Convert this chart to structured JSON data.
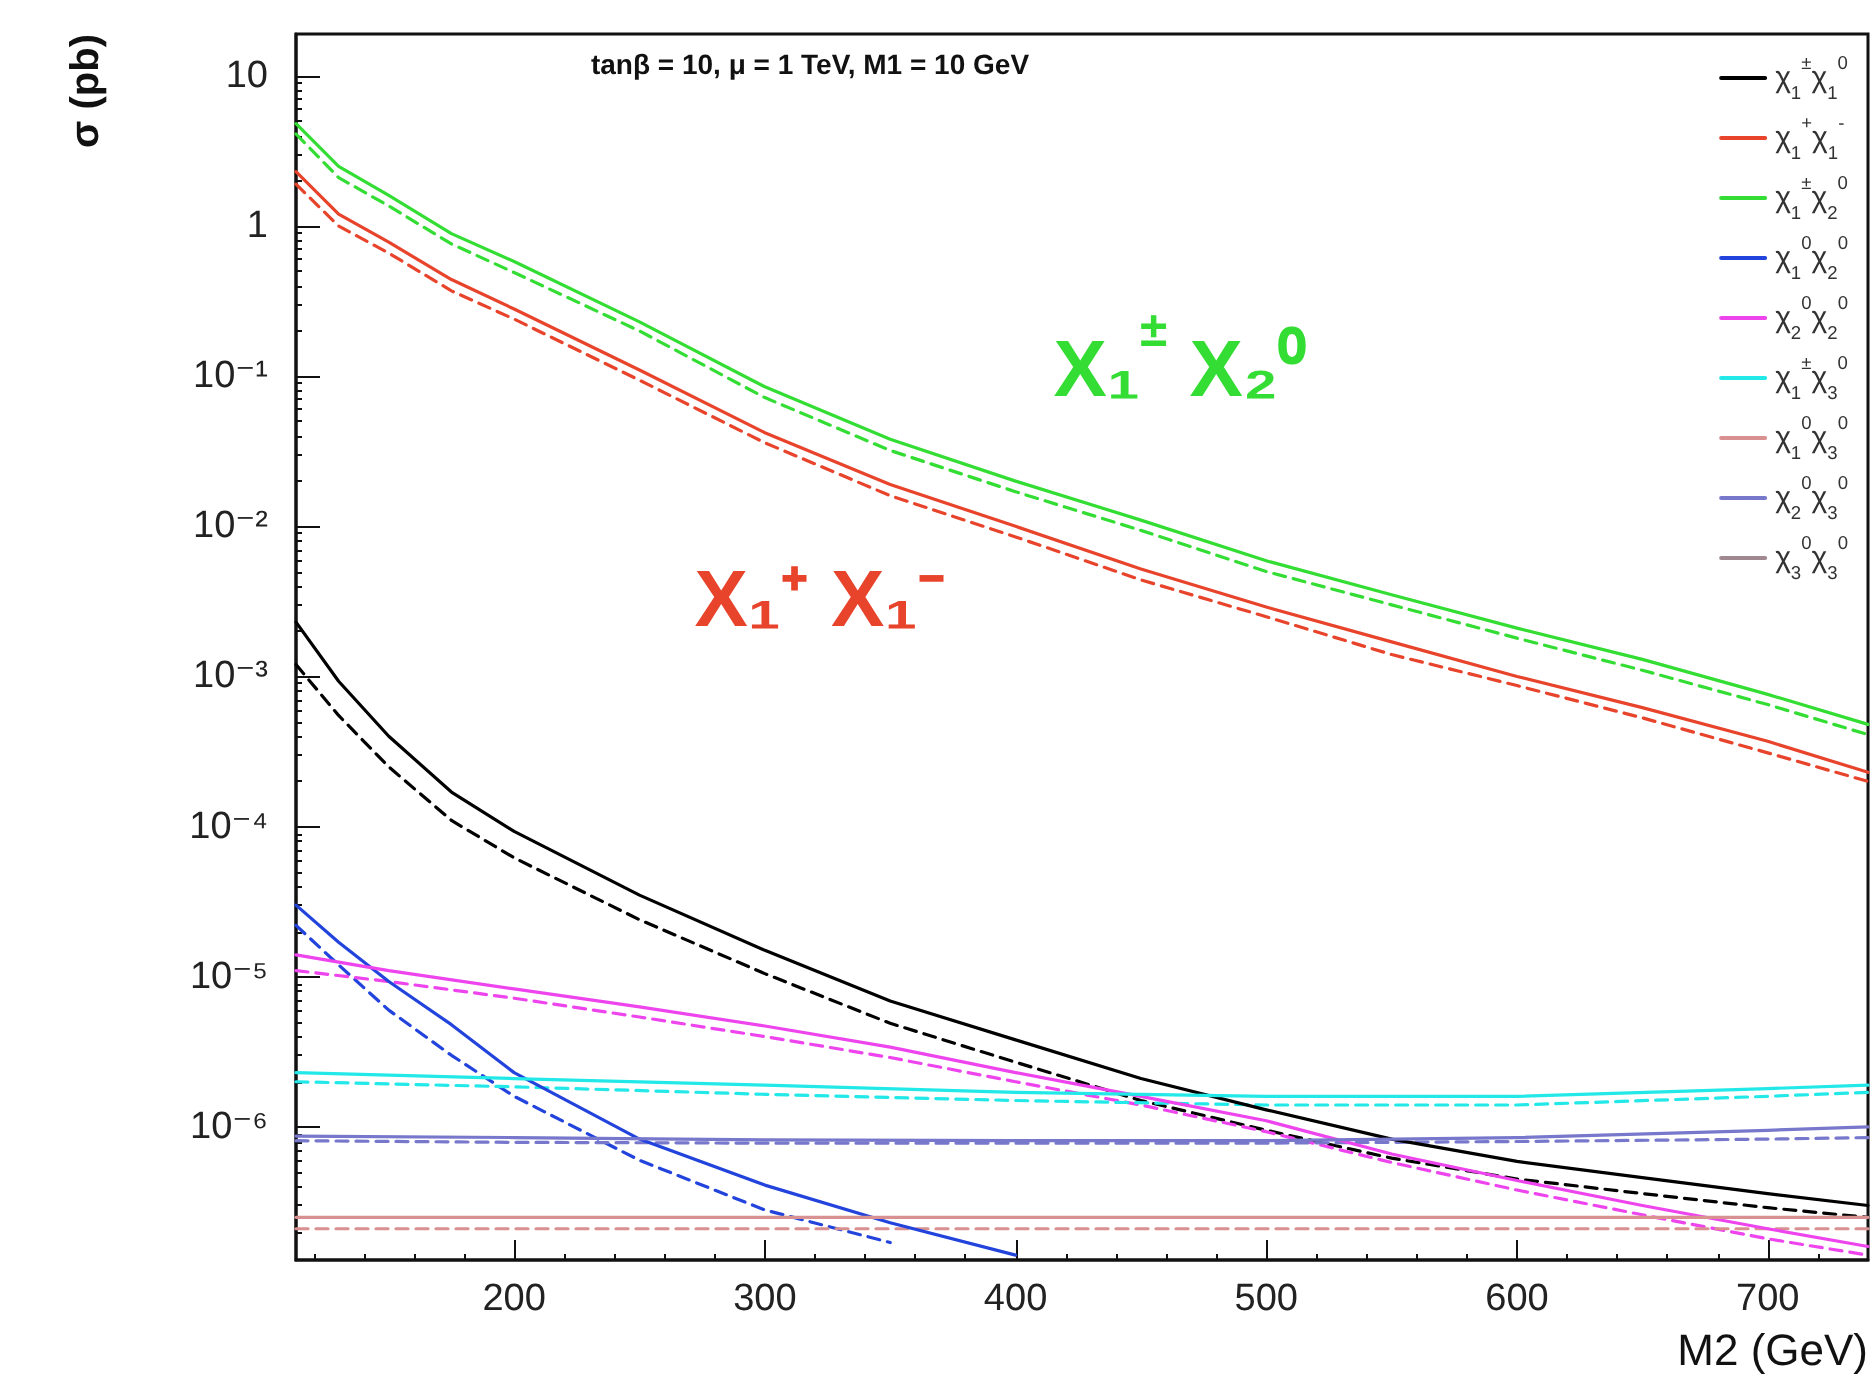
{
  "chart_data": {
    "type": "line",
    "title": "tanβ = 10, μ = 1 TeV, M1 = 10 GeV",
    "xlabel": "M2 (GeV)",
    "ylabel": "σ (pb)",
    "log": "y",
    "grid": false,
    "legend": "top right",
    "marker": "none",
    "xlim": [
      113,
      740
    ],
    "xticks": [
      200,
      300,
      400,
      500,
      600,
      700
    ],
    "ylim": [
      1.3e-07,
      19
    ],
    "yticks": [
      10,
      1,
      {
        "value": 0.1,
        "label": "10⁻¹"
      },
      {
        "value": 0.01,
        "label": "10⁻²"
      },
      {
        "value": 0.001,
        "label": "10⁻³"
      },
      {
        "value": 0.0001,
        "label": "10⁻⁴"
      },
      {
        "value": 1e-05,
        "label": "10⁻⁵"
      },
      {
        "value": 1e-06,
        "label": "10⁻⁶"
      }
    ],
    "annotations": [
      "X₁$^{±}$ X₂⁰",
      "X₁⁺ X₁⁻"
    ],
    "series": [
      {
        "name": "χ$_{1}$$^{±}$χ$_{1}$$^{0}$",
        "color": "#000000",
        "line_style": "solid",
        "x": [
          113,
          130,
          150,
          175,
          200,
          250,
          300,
          350,
          400,
          450,
          500,
          550,
          600,
          650,
          700,
          740
        ],
        "values": [
          0.0023,
          0.00093,
          0.0004,
          0.00017,
          9.3e-05,
          3.5e-05,
          1.5e-05,
          6.9e-06,
          3.8e-06,
          2.1e-06,
          1.3e-06,
          8.3e-07,
          5.9e-07,
          4.6e-07,
          3.6e-07,
          3e-07
        ]
      },
      {
        "name": "χ$_{1}$$^{+}$χ$_{1}$$^{-}$",
        "color": "#e8432b",
        "line_style": "solid",
        "x": [
          113,
          130,
          150,
          175,
          200,
          250,
          300,
          350,
          400,
          450,
          500,
          550,
          600,
          650,
          700,
          740
        ],
        "values": [
          2.3,
          1.2,
          0.78,
          0.44,
          0.28,
          0.11,
          0.042,
          0.019,
          0.01,
          0.0052,
          0.0029,
          0.0017,
          0.001,
          0.00062,
          0.00037,
          0.00023
        ]
      },
      {
        "name": "χ$_{1}$$^{±}$χ$_{2}$$^{0}$",
        "color": "#33dd33",
        "line_style": "solid",
        "x": [
          113,
          130,
          150,
          175,
          200,
          250,
          300,
          350,
          400,
          450,
          500,
          550,
          600,
          650,
          700,
          740
        ],
        "values": [
          4.8,
          2.5,
          1.6,
          0.89,
          0.58,
          0.23,
          0.085,
          0.038,
          0.02,
          0.011,
          0.0059,
          0.0035,
          0.0021,
          0.0013,
          0.00076,
          0.00048
        ]
      },
      {
        "name": "χ$_{1}$$^{0}$χ$_{2}$$^{0}$",
        "color": "#2244dd",
        "line_style": "solid",
        "x": [
          113,
          130,
          150,
          175,
          200,
          250,
          300,
          350,
          400
        ],
        "values": [
          3e-05,
          1.7e-05,
          9.3e-06,
          4.8e-06,
          2.3e-06,
          8.3e-07,
          4.1e-07,
          2.3e-07,
          1.4e-07
        ]
      },
      {
        "name": "χ$_{2}$$^{0}$χ$_{2}$$^{0}$",
        "color": "#ee44ee",
        "line_style": "solid",
        "x": [
          113,
          150,
          200,
          250,
          300,
          350,
          400,
          450,
          500,
          550,
          600,
          650,
          700,
          740
        ],
        "values": [
          1.4e-05,
          1.1e-05,
          8.3e-06,
          6.3e-06,
          4.7e-06,
          3.4e-06,
          2.3e-06,
          1.6e-06,
          1.1e-06,
          6.6e-07,
          4.4e-07,
          3e-07,
          2.1e-07,
          1.6e-07
        ]
      },
      {
        "name": "χ$_{1}$$^{±}$χ$_{3}$$^{0}$",
        "color": "#22e8e8",
        "line_style": "solid",
        "x": [
          113,
          200,
          300,
          400,
          500,
          600,
          700,
          740
        ],
        "values": [
          2.3e-06,
          2.1e-06,
          1.9e-06,
          1.7e-06,
          1.6e-06,
          1.6e-06,
          1.8e-06,
          1.9e-06
        ]
      },
      {
        "name": "χ$_{1}$$^{0}$χ$_{3}$$^{0}$",
        "color": "#d89090",
        "line_style": "solid",
        "x": [
          113,
          740
        ],
        "values": [
          2.5e-07,
          2.5e-07
        ]
      },
      {
        "name": "χ$_{2}$$^{0}$χ$_{3}$$^{0}$",
        "color": "#7777cc",
        "line_style": "solid",
        "x": [
          113,
          200,
          300,
          400,
          500,
          600,
          700,
          740
        ],
        "values": [
          8.7e-07,
          8.5e-07,
          8.2e-07,
          8.1e-07,
          8.1e-07,
          8.5e-07,
          9.5e-07,
          1e-06
        ]
      },
      {
        "name": "χ$_{3}$$^{0}$χ$_{3}$$^{0}$",
        "color": "#a08890",
        "line_style": "solid"
      },
      {
        "color": "#000000",
        "line_style": "dashed",
        "x": [
          113,
          130,
          150,
          175,
          200,
          250,
          300,
          350,
          400,
          450,
          500,
          550,
          600,
          650,
          700,
          740
        ],
        "values": [
          0.0012,
          0.00055,
          0.00025,
          0.00011,
          6.2e-05,
          2.4e-05,
          1.05e-05,
          4.9e-06,
          2.7e-06,
          1.5e-06,
          9.5e-07,
          6.2e-07,
          4.5e-07,
          3.6e-07,
          2.9e-07,
          2.5e-07
        ]
      },
      {
        "color": "#e8432b",
        "line_style": "dashed",
        "x": [
          113,
          130,
          150,
          175,
          200,
          250,
          300,
          350,
          400,
          450,
          500,
          550,
          600,
          650,
          700,
          740
        ],
        "values": [
          1.9,
          1.0,
          0.66,
          0.37,
          0.24,
          0.094,
          0.036,
          0.016,
          0.0085,
          0.0044,
          0.0025,
          0.0014,
          0.00087,
          0.00053,
          0.00031,
          0.0002
        ]
      },
      {
        "color": "#33dd33",
        "line_style": "dashed",
        "x": [
          113,
          130,
          150,
          175,
          200,
          250,
          300,
          350,
          400,
          450,
          500,
          550,
          600,
          650,
          700,
          740
        ],
        "values": [
          4.1,
          2.1,
          1.36,
          0.76,
          0.49,
          0.2,
          0.072,
          0.032,
          0.017,
          0.0094,
          0.005,
          0.003,
          0.0018,
          0.0011,
          0.00065,
          0.00041
        ]
      },
      {
        "color": "#2244dd",
        "line_style": "dashed",
        "x": [
          113,
          130,
          150,
          175,
          200,
          250,
          300,
          350
        ],
        "values": [
          2.2e-05,
          1.2e-05,
          6e-06,
          3e-06,
          1.6e-06,
          6e-07,
          2.8e-07,
          1.7e-07
        ]
      },
      {
        "color": "#ee44ee",
        "line_style": "dashed",
        "x": [
          113,
          150,
          200,
          250,
          300,
          350,
          400,
          450,
          500,
          550,
          600,
          650,
          700,
          740
        ],
        "values": [
          1.1e-05,
          9.3e-06,
          7.2e-06,
          5.4e-06,
          4e-06,
          2.9e-06,
          2e-06,
          1.4e-06,
          9.3e-07,
          5.8e-07,
          3.8e-07,
          2.6e-07,
          1.8e-07,
          1.4e-07
        ]
      },
      {
        "color": "#22e8e8",
        "line_style": "dashed",
        "x": [
          113,
          200,
          300,
          400,
          500,
          600,
          700,
          740
        ],
        "values": [
          2e-06,
          1.85e-06,
          1.65e-06,
          1.5e-06,
          1.4e-06,
          1.4e-06,
          1.6e-06,
          1.7e-06
        ]
      },
      {
        "color": "#d89090",
        "line_style": "dashed",
        "x": [
          113,
          740
        ],
        "values": [
          2.1e-07,
          2.1e-07
        ]
      },
      {
        "color": "#7777cc",
        "line_style": "dashed",
        "x": [
          113,
          200,
          300,
          400,
          500,
          600,
          700,
          740
        ],
        "values": [
          8.1e-07,
          7.9e-07,
          7.8e-07,
          7.8e-07,
          7.8e-07,
          8e-07,
          8.3e-07,
          8.5e-07
        ]
      }
    ]
  }
}
